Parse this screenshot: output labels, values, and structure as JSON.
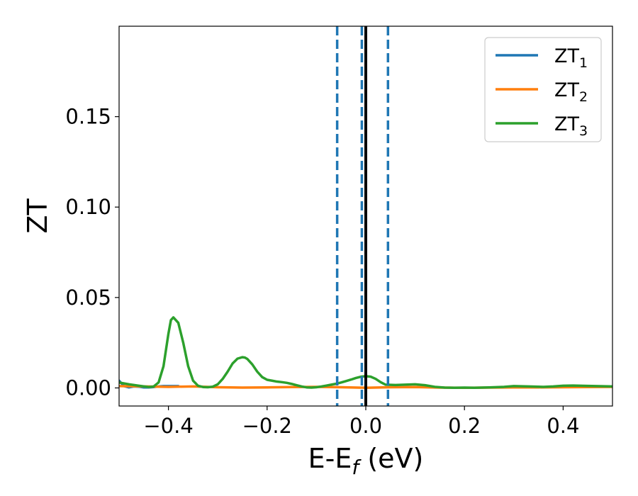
{
  "chart_data": {
    "type": "line",
    "xlabel": "E-E",
    "xlabel_sub": "f",
    "xlabel_unit": " (eV)",
    "ylabel": "ZT",
    "xlim": [
      -0.5,
      0.5
    ],
    "ylim": [
      -0.01,
      0.2
    ],
    "xticks": [
      -0.4,
      -0.2,
      0.0,
      0.2,
      0.4
    ],
    "xtick_labels": [
      "−0.4",
      "−0.2",
      "0.0",
      "0.2",
      "0.4"
    ],
    "yticks": [
      0.0,
      0.05,
      0.1,
      0.15
    ],
    "ytick_labels": [
      "0.00",
      "0.05",
      "0.10",
      "0.15"
    ],
    "grid": false,
    "legend_position": "top-right",
    "legend": [
      {
        "base": "ZT",
        "sub": "1",
        "color": "#1f77b4"
      },
      {
        "base": "ZT",
        "sub": "2",
        "color": "#ff7f0e"
      },
      {
        "base": "ZT",
        "sub": "3",
        "color": "#2ca02c"
      }
    ],
    "vertical_lines": [
      {
        "x": -0.058,
        "color": "#1f77b4",
        "style": "dashed"
      },
      {
        "x": -0.008,
        "color": "#1f77b4",
        "style": "dashed"
      },
      {
        "x": 0.045,
        "color": "#1f77b4",
        "style": "dashed"
      },
      {
        "x": 0.0,
        "color": "#000000",
        "style": "solid"
      }
    ],
    "series": [
      {
        "name": "ZT1",
        "color": "#1f77b4",
        "x": [
          -0.5,
          -0.49,
          -0.48,
          -0.47,
          -0.46,
          -0.45,
          -0.44,
          -0.43,
          -0.42,
          -0.41,
          -0.4,
          -0.39,
          -0.38
        ],
        "y": [
          0.004,
          0.001,
          0.0003,
          0.0008,
          0.0007,
          0.0003,
          0.0003,
          0.0005,
          0.0008,
          0.001,
          0.001,
          0.001,
          0.001
        ]
      },
      {
        "name": "ZT2",
        "color": "#ff7f0e",
        "x": [
          -0.5,
          -0.45,
          -0.4,
          -0.35,
          -0.3,
          -0.25,
          -0.2,
          -0.15,
          -0.1,
          -0.05,
          0.0,
          0.05,
          0.1,
          0.15,
          0.2,
          0.25,
          0.3,
          0.35,
          0.4,
          0.45,
          0.5
        ],
        "y": [
          0.001,
          0.0008,
          0.0006,
          0.0008,
          0.0004,
          0.0002,
          0.0003,
          0.0005,
          0.0006,
          0.0004,
          0.0001,
          0.0004,
          0.0005,
          0.0002,
          0.0001,
          0.0002,
          0.0003,
          0.0003,
          0.0004,
          0.0005,
          0.0006
        ]
      },
      {
        "name": "ZT3",
        "color": "#2ca02c",
        "x": [
          -0.5,
          -0.48,
          -0.46,
          -0.44,
          -0.43,
          -0.42,
          -0.41,
          -0.4,
          -0.395,
          -0.39,
          -0.38,
          -0.37,
          -0.36,
          -0.35,
          -0.34,
          -0.33,
          -0.32,
          -0.31,
          -0.3,
          -0.29,
          -0.28,
          -0.27,
          -0.26,
          -0.25,
          -0.245,
          -0.24,
          -0.23,
          -0.22,
          -0.21,
          -0.2,
          -0.19,
          -0.18,
          -0.17,
          -0.16,
          -0.15,
          -0.14,
          -0.13,
          -0.12,
          -0.11,
          -0.1,
          -0.09,
          -0.08,
          -0.07,
          -0.06,
          -0.05,
          -0.04,
          -0.03,
          -0.02,
          -0.01,
          0.0,
          0.01,
          0.02,
          0.03,
          0.04,
          0.06,
          0.08,
          0.1,
          0.12,
          0.14,
          0.16,
          0.18,
          0.2,
          0.22,
          0.25,
          0.28,
          0.3,
          0.33,
          0.36,
          0.38,
          0.4,
          0.42,
          0.45,
          0.5
        ],
        "y": [
          0.003,
          0.002,
          0.0012,
          0.0005,
          0.0008,
          0.003,
          0.012,
          0.03,
          0.0375,
          0.039,
          0.036,
          0.025,
          0.012,
          0.004,
          0.0012,
          0.0005,
          0.0004,
          0.0007,
          0.002,
          0.005,
          0.009,
          0.0135,
          0.0162,
          0.017,
          0.0168,
          0.016,
          0.013,
          0.009,
          0.006,
          0.0045,
          0.004,
          0.0035,
          0.0032,
          0.0028,
          0.0022,
          0.0015,
          0.0008,
          0.0003,
          0.0002,
          0.0004,
          0.0008,
          0.0013,
          0.0018,
          0.0023,
          0.003,
          0.0038,
          0.0046,
          0.0055,
          0.0062,
          0.0065,
          0.0062,
          0.005,
          0.0032,
          0.0018,
          0.0016,
          0.0018,
          0.002,
          0.0015,
          0.0006,
          0.0002,
          0.0001,
          0.0002,
          0.0001,
          0.0003,
          0.0006,
          0.001,
          0.0008,
          0.0006,
          0.0008,
          0.0012,
          0.0013,
          0.0011,
          0.0008
        ]
      }
    ]
  }
}
